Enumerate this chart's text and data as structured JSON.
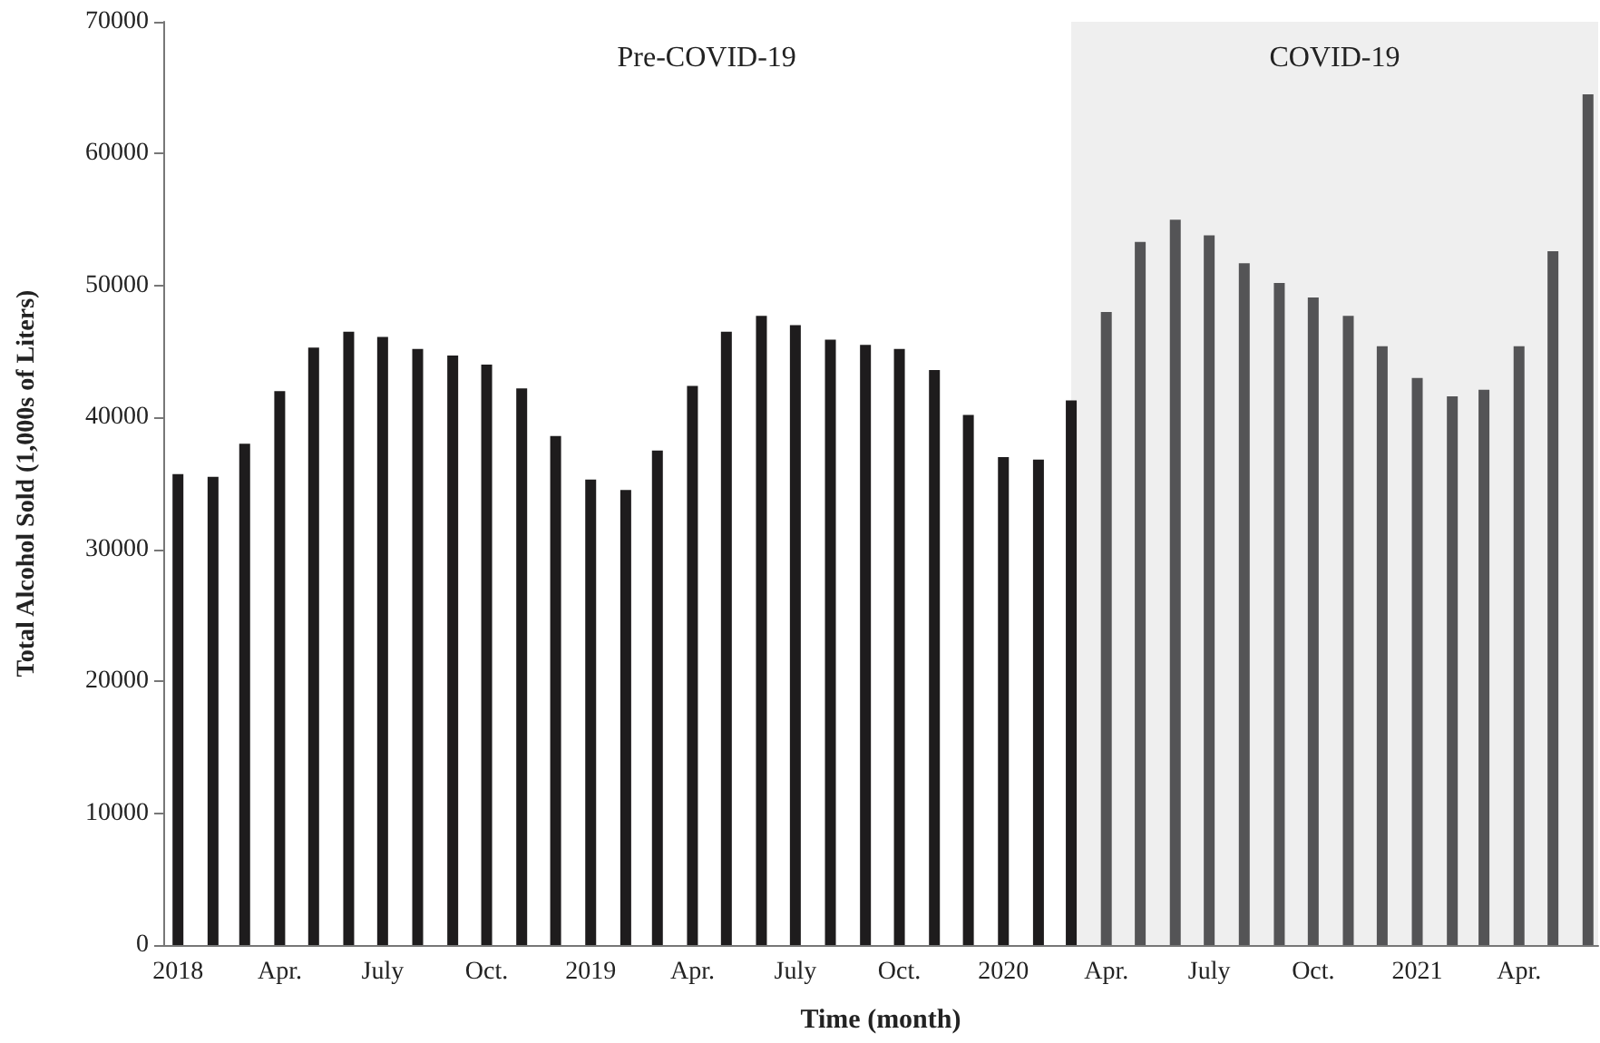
{
  "chart_data": {
    "type": "bar",
    "xlabel": "Time (month)",
    "ylabel": "Total Alcohol Sold (1,000s of Liters)",
    "series": [
      {
        "color": "#1e1c1d",
        "x": [
          "2018-01",
          "2018-02",
          "2018-03",
          "2018-04",
          "2018-05",
          "2018-06",
          "2018-07",
          "2018-08",
          "2018-09",
          "2018-10",
          "2018-11",
          "2018-12",
          "2019-01",
          "2019-02",
          "2019-03",
          "2019-04",
          "2019-05",
          "2019-06",
          "2019-07",
          "2019-08",
          "2019-09",
          "2019-10",
          "2019-11",
          "2019-12",
          "2020-01",
          "2020-02",
          "2020-03"
        ],
        "values": [
          35700,
          35500,
          38000,
          42000,
          45300,
          46500,
          46100,
          45200,
          44700,
          44000,
          42200,
          38600,
          35300,
          34500,
          37500,
          42400,
          46500,
          47700,
          47000,
          45900,
          45500,
          45200,
          43600,
          40200,
          37000,
          36800,
          41300
        ]
      },
      {
        "color": "#545456",
        "x": [
          "2020-04",
          "2020-05",
          "2020-06",
          "2020-07",
          "2020-08",
          "2020-09",
          "2020-10",
          "2020-11",
          "2020-12",
          "2021-01",
          "2021-02",
          "2021-03",
          "2021-04",
          "2021-05",
          "2021-06"
        ],
        "values": [
          48000,
          53300,
          55000,
          53800,
          51700,
          50200,
          49100,
          47700,
          45400,
          43000,
          41600,
          42100,
          45400,
          52600,
          64500
        ]
      }
    ],
    "xlim": [
      "2017-12-19",
      "2021-06-10"
    ],
    "xticks": [
      {
        "value": "2018-01",
        "label": "2018"
      },
      {
        "value": "2018-04",
        "label": "Apr."
      },
      {
        "value": "2018-07",
        "label": "July"
      },
      {
        "value": "2018-10",
        "label": "Oct."
      },
      {
        "value": "2019-01",
        "label": "2019"
      },
      {
        "value": "2019-04",
        "label": "Apr."
      },
      {
        "value": "2019-07",
        "label": "July"
      },
      {
        "value": "2019-10",
        "label": "Oct."
      },
      {
        "value": "2020-01",
        "label": "2020"
      },
      {
        "value": "2020-04",
        "label": "Apr."
      },
      {
        "value": "2020-07",
        "label": "July"
      },
      {
        "value": "2020-10",
        "label": "Oct."
      },
      {
        "value": "2021-01",
        "label": "2021"
      },
      {
        "value": "2021-04",
        "label": "Apr."
      }
    ],
    "ylim": [
      0,
      70000
    ],
    "yticks": [
      0,
      10000,
      20000,
      30000,
      40000,
      50000,
      60000,
      70000
    ],
    "bands": [
      {
        "axis": "x",
        "from": "2020-03-01",
        "to": "2021-06-10",
        "label": "COVID-19",
        "color": "#efefef"
      }
    ],
    "annotations": [
      "Pre-COVID-19"
    ],
    "grid": false
  }
}
